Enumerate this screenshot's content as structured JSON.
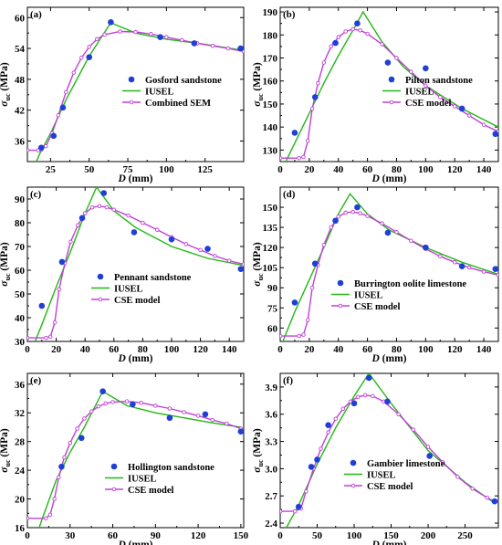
{
  "colors": {
    "experiment": "#1f3fd6",
    "iusel": "#22b814",
    "model": "#c040d8",
    "axis": "#000000"
  },
  "chart_data": [
    {
      "panel": "(a)",
      "type": "line",
      "xlabel": "D (mm)",
      "ylabel": "σuc (MPa)",
      "xlim": [
        10,
        150
      ],
      "ylim": [
        32,
        62
      ],
      "xticks": [
        25,
        50,
        75,
        100,
        125
      ],
      "yticks": [
        36,
        42,
        48,
        54,
        60
      ],
      "legend_position": "center-right",
      "series": [
        {
          "name": "Gosford sandstone",
          "kind": "scatter",
          "x": [
            19,
            27,
            33,
            50,
            64,
            96,
            118,
            148
          ],
          "y": [
            34.7,
            37,
            42.5,
            52.3,
            59.1,
            56.2,
            55,
            54
          ]
        },
        {
          "name": "IUSEL",
          "kind": "line",
          "x": [
            10,
            18,
            25,
            35,
            50,
            64,
            80,
            100,
            125,
            150
          ],
          "y": [
            28,
            33.5,
            37.5,
            44,
            52.5,
            59,
            57,
            55.8,
            54.8,
            53.6
          ]
        },
        {
          "name": "Combined SEM",
          "kind": "line-marker",
          "x": [
            10,
            17,
            19,
            22,
            26,
            30,
            35,
            40,
            45,
            50,
            55,
            60,
            70,
            80,
            90,
            100,
            110,
            120,
            130,
            140,
            150
          ],
          "y": [
            34.2,
            34.2,
            34.3,
            35,
            37.5,
            41,
            45.5,
            49.3,
            52.2,
            54.3,
            55.8,
            56.7,
            57.3,
            57.2,
            56.8,
            56.2,
            55.6,
            55,
            54.5,
            54,
            53.4
          ]
        }
      ]
    },
    {
      "panel": "(b)",
      "type": "line",
      "xlabel": "D (mm)",
      "ylabel": "σuc (MPa)",
      "xlim": [
        0,
        150
      ],
      "ylim": [
        125,
        192
      ],
      "xticks": [
        0,
        20,
        40,
        60,
        80,
        100,
        120,
        140
      ],
      "yticks": [
        130,
        140,
        150,
        160,
        170,
        180,
        190
      ],
      "legend_position": "center-right",
      "series": [
        {
          "name": "Pilton sandstone",
          "kind": "scatter",
          "x": [
            10,
            24,
            38,
            53,
            74,
            100,
            125,
            148
          ],
          "y": [
            137.5,
            153,
            176.5,
            185,
            168,
            165.5,
            148,
            137
          ]
        },
        {
          "name": "IUSEL",
          "kind": "line",
          "x": [
            0,
            10,
            20,
            30,
            40,
            50,
            57,
            70,
            85,
            100,
            125,
            150
          ],
          "y": [
            120,
            133,
            146,
            159,
            171,
            182,
            190,
            177,
            166,
            158,
            148,
            140
          ]
        },
        {
          "name": "CSE model",
          "kind": "line-marker",
          "x": [
            0,
            13,
            16,
            19,
            22,
            26,
            30,
            35,
            40,
            45,
            50,
            55,
            60,
            70,
            80,
            90,
            100,
            110,
            120,
            130,
            140,
            150
          ],
          "y": [
            126.5,
            126.5,
            127,
            134,
            148,
            159,
            168,
            175,
            179,
            181.5,
            182.5,
            182,
            180.5,
            176,
            170,
            164,
            158,
            153,
            149,
            145,
            141,
            138
          ]
        }
      ]
    },
    {
      "panel": "(c)",
      "type": "line",
      "xlabel": "D (mm)",
      "ylabel": "σuc (MPa)",
      "xlim": [
        0,
        150
      ],
      "ylim": [
        30,
        95
      ],
      "xticks": [
        0,
        20,
        40,
        60,
        80,
        100,
        120,
        140
      ],
      "yticks": [
        30,
        40,
        50,
        60,
        70,
        80,
        90
      ],
      "legend_position": "center-right",
      "series": [
        {
          "name": "Pennant sandstone",
          "kind": "scatter",
          "x": [
            10,
            24,
            38,
            53,
            74,
            100,
            125,
            148
          ],
          "y": [
            45,
            63.5,
            82,
            92.5,
            76,
            73,
            69,
            60.5
          ]
        },
        {
          "name": "IUSEL",
          "kind": "line",
          "x": [
            0,
            10,
            20,
            30,
            40,
            48,
            60,
            75,
            100,
            125,
            150
          ],
          "y": [
            22,
            37,
            53,
            68,
            84,
            95,
            85,
            78,
            70,
            65,
            62
          ]
        },
        {
          "name": "CSE model",
          "kind": "line-marker",
          "x": [
            0,
            13,
            16,
            19,
            22,
            26,
            30,
            35,
            40,
            45,
            50,
            55,
            60,
            70,
            80,
            90,
            100,
            110,
            120,
            130,
            140,
            150
          ],
          "y": [
            31.5,
            31.5,
            32,
            38,
            52,
            63,
            72,
            79,
            84,
            86.5,
            87,
            86.5,
            85.5,
            83,
            80,
            77,
            74,
            71,
            68.5,
            66,
            64,
            62.5
          ]
        }
      ]
    },
    {
      "panel": "(d)",
      "type": "line",
      "xlabel": "D (mm)",
      "ylabel": "σuc (MPa)",
      "xlim": [
        0,
        150
      ],
      "ylim": [
        50,
        165
      ],
      "xticks": [
        0,
        20,
        40,
        60,
        80,
        100,
        120,
        140
      ],
      "yticks": [
        60,
        75,
        90,
        105,
        120,
        135,
        150
      ],
      "legend_position": "center-right",
      "series": [
        {
          "name": "Burrington oolite limestone",
          "kind": "scatter",
          "x": [
            10,
            24,
            38,
            53,
            74,
            100,
            125,
            148
          ],
          "y": [
            79,
            108,
            140,
            150,
            131,
            120,
            106,
            104
          ]
        },
        {
          "name": "IUSEL",
          "kind": "line",
          "x": [
            0,
            10,
            20,
            30,
            40,
            48,
            60,
            75,
            100,
            125,
            150
          ],
          "y": [
            45,
            72,
            96,
            120,
            145,
            160,
            145,
            133,
            120,
            109,
            100
          ]
        },
        {
          "name": "CSE model",
          "kind": "line-marker",
          "x": [
            0,
            13,
            16,
            19,
            22,
            26,
            30,
            35,
            40,
            45,
            50,
            55,
            60,
            70,
            80,
            90,
            100,
            110,
            120,
            130,
            140,
            150
          ],
          "y": [
            54,
            54,
            55,
            66,
            90,
            107,
            122,
            135,
            143,
            146,
            146.5,
            145.5,
            143.5,
            138,
            131.5,
            125,
            119,
            113.5,
            109,
            105,
            102,
            99.5
          ]
        }
      ]
    },
    {
      "panel": "(e)",
      "type": "line",
      "xlabel": "D (mm)",
      "ylabel": "σuc (MPa)",
      "xlim": [
        0,
        152
      ],
      "ylim": [
        16,
        37.5
      ],
      "xticks": [
        0,
        30,
        60,
        90,
        120,
        150
      ],
      "yticks": [
        16,
        20,
        24,
        28,
        32,
        36
      ],
      "legend_position": "center-right",
      "series": [
        {
          "name": "Hollington sandstone",
          "kind": "scatter",
          "x": [
            24,
            38,
            53,
            74,
            100,
            125,
            150
          ],
          "y": [
            24.5,
            28.5,
            35,
            33.2,
            31.3,
            31.8,
            29.4
          ]
        },
        {
          "name": "IUSEL",
          "kind": "line",
          "x": [
            5,
            10,
            20,
            30,
            40,
            53,
            70,
            90,
            110,
            130,
            150
          ],
          "y": [
            14,
            17,
            22.5,
            26.5,
            30,
            35,
            33,
            32,
            31.3,
            30.6,
            30
          ]
        },
        {
          "name": "CSE model",
          "kind": "line-marker",
          "x": [
            0,
            13,
            16,
            19,
            22,
            26,
            30,
            35,
            40,
            45,
            50,
            55,
            60,
            70,
            80,
            90,
            100,
            110,
            120,
            130,
            140,
            150
          ],
          "y": [
            17.3,
            17.3,
            17.8,
            20,
            23,
            25.8,
            27.8,
            29.8,
            31.2,
            32.2,
            32.9,
            33.3,
            33.5,
            33.6,
            33.4,
            33,
            32.6,
            32.1,
            31.6,
            31,
            30.5,
            29.8
          ]
        }
      ]
    },
    {
      "panel": "(f)",
      "type": "line",
      "xlabel": "D (mm)",
      "ylabel": "σuc (MPa)",
      "xlim": [
        0,
        295
      ],
      "ylim": [
        2.35,
        4.05
      ],
      "xticks": [
        0,
        50,
        100,
        150,
        200,
        250
      ],
      "yticks": [
        2.4,
        2.7,
        3.0,
        3.3,
        3.6,
        3.9
      ],
      "legend_position": "center-right",
      "series": [
        {
          "name": "Gambier limestone",
          "kind": "scatter",
          "x": [
            25,
            42,
            50,
            65,
            100,
            120,
            145,
            202,
            290
          ],
          "y": [
            2.58,
            3.02,
            3.1,
            3.48,
            3.72,
            4.0,
            3.74,
            3.14,
            2.64
          ]
        },
        {
          "name": "IUSEL",
          "kind": "line",
          "x": [
            5,
            25,
            50,
            75,
            100,
            120,
            150,
            200,
            250,
            290
          ],
          "y": [
            2.3,
            2.6,
            3.05,
            3.45,
            3.8,
            4.05,
            3.72,
            3.2,
            2.85,
            2.62
          ]
        },
        {
          "name": "CSE model",
          "kind": "line-marker",
          "x": [
            0,
            20,
            28,
            35,
            45,
            55,
            65,
            75,
            85,
            95,
            105,
            115,
            125,
            140,
            160,
            180,
            200,
            220,
            240,
            260,
            280,
            290
          ],
          "y": [
            2.53,
            2.53,
            2.56,
            2.75,
            3.0,
            3.22,
            3.4,
            3.55,
            3.66,
            3.74,
            3.79,
            3.81,
            3.8,
            3.74,
            3.6,
            3.43,
            3.24,
            3.07,
            2.91,
            2.78,
            2.68,
            2.64
          ]
        }
      ]
    }
  ]
}
